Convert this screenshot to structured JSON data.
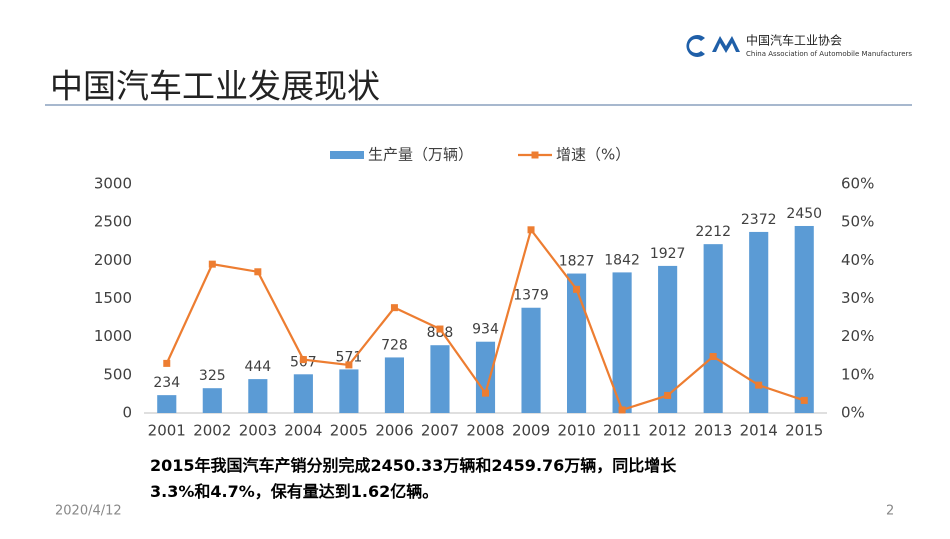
{
  "slide": {
    "title": "中国汽车工业发展现状",
    "logo_cn": "中国汽车工业协会",
    "logo_en": "China Association of Automobile Manufacturers",
    "caption": [
      "2015年我国汽车产销分别完成2450.33万辆和2459.76万辆，同比增长",
      "3.3%和4.7%，保有量达到1.62亿辆。"
    ],
    "date": "2020/4/12",
    "page": "2"
  },
  "chart_data": {
    "type": "bar",
    "categories": [
      "2001",
      "2002",
      "2003",
      "2004",
      "2005",
      "2006",
      "2007",
      "2008",
      "2009",
      "2010",
      "2011",
      "2012",
      "2013",
      "2014",
      "2015"
    ],
    "series": [
      {
        "name": "生产量（万辆）",
        "color": "#5b9bd5",
        "type": "bar",
        "values": [
          234,
          325,
          444,
          507,
          571,
          728,
          888,
          934,
          1379,
          1827,
          1842,
          1927,
          2212,
          2372,
          2450
        ]
      },
      {
        "name": "增速（%）",
        "color": "#ed7d31",
        "type": "line",
        "axis": "y2",
        "values": [
          13,
          39,
          37,
          14,
          12.6,
          27.6,
          22,
          5.2,
          48,
          32.4,
          0.8,
          4.6,
          14.8,
          7.3,
          3.3
        ]
      }
    ],
    "ylim": [
      0,
      3000
    ],
    "yticks": [
      0,
      500,
      1000,
      1500,
      2000,
      2500,
      3000
    ],
    "y2lim": [
      0,
      60
    ],
    "y2ticks": [
      {
        "value": 0,
        "label": "0%"
      },
      {
        "value": 10,
        "label": "10%"
      },
      {
        "value": 20,
        "label": "20%"
      },
      {
        "value": 30,
        "label": "30%"
      },
      {
        "value": 40,
        "label": "40%"
      },
      {
        "value": 50,
        "label": "50%"
      },
      {
        "value": 60,
        "label": "60%"
      }
    ],
    "grid": false,
    "legend": "top"
  }
}
